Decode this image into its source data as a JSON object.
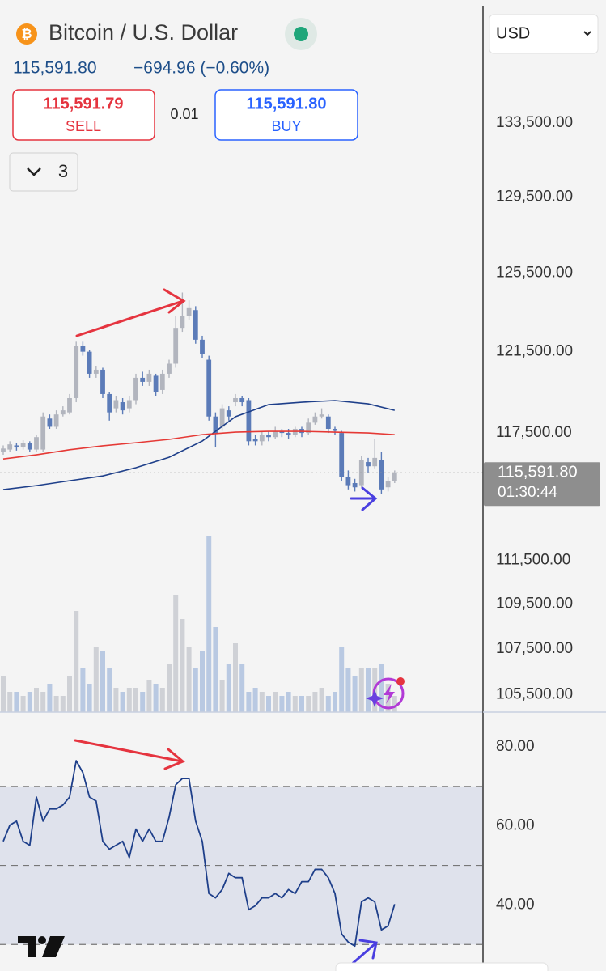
{
  "header": {
    "symbol": "Bitcoin / U.S. Dollar",
    "price": "115,591.80",
    "change": "−694.96 (−0.60%)",
    "sell_price": "115,591.79",
    "sell_label": "SELL",
    "spread": "0.01",
    "buy_price": "115,591.80",
    "buy_label": "BUY",
    "indicator_count": "3",
    "currency": "USD"
  },
  "chart_data": [
    {
      "type": "candlestick",
      "log": true,
      "grid": false,
      "up_color": "#b2b5be",
      "down_color": "#5b7bb8",
      "ylim": [
        104740,
        140440
      ],
      "yticks": [
        {
          "value": 133500,
          "label": "133,500.00"
        },
        {
          "value": 129500,
          "label": "129,500.00"
        },
        {
          "value": 125500,
          "label": "125,500.00"
        },
        {
          "value": 121500,
          "label": "121,500.00"
        },
        {
          "value": 117500,
          "label": "117,500.00"
        },
        {
          "value": 111500,
          "label": "111,500.00"
        },
        {
          "value": 109500,
          "label": "109,500.00"
        },
        {
          "value": 107500,
          "label": "107,500.00"
        },
        {
          "value": 105500,
          "label": "105,500.00"
        }
      ],
      "open": [
        116600,
        116700,
        116900,
        116800,
        117000,
        116700,
        116700,
        118200,
        117800,
        118400,
        118500,
        119200,
        121800,
        121500,
        120400,
        120600,
        119400,
        118700,
        119000,
        118700,
        119100,
        120200,
        120000,
        120300,
        119600,
        120400,
        120900,
        122700,
        123300,
        123600,
        122100,
        121100,
        118300,
        117800,
        118600,
        119000,
        119200,
        119100,
        117200,
        117100,
        117400,
        117300,
        117600,
        117500,
        117400,
        117700,
        117500,
        118000,
        118300,
        118300,
        117700,
        117500,
        115400,
        115100,
        115000,
        116100,
        115900,
        116200,
        114900,
        115200
      ],
      "high": [
        116900,
        117100,
        117000,
        117150,
        117100,
        117400,
        118500,
        118400,
        118600,
        118800,
        119400,
        122000,
        122000,
        121600,
        120800,
        120700,
        119500,
        119300,
        119200,
        119300,
        120400,
        120500,
        120600,
        120400,
        120600,
        121100,
        123300,
        124500,
        124100,
        123800,
        122300,
        121300,
        118500,
        118900,
        118800,
        119400,
        119300,
        119200,
        117400,
        117600,
        117600,
        117800,
        117700,
        117700,
        117800,
        117800,
        118200,
        118500,
        118700,
        118400,
        117800,
        117600,
        115700,
        115300,
        116400,
        116300,
        117200,
        116600,
        115400,
        115700
      ],
      "low": [
        116450,
        116600,
        116650,
        116700,
        116600,
        116600,
        116600,
        117700,
        117700,
        118300,
        118400,
        119000,
        121300,
        120200,
        120200,
        119200,
        118100,
        118500,
        118400,
        118500,
        118900,
        119800,
        119800,
        119300,
        119400,
        120200,
        120700,
        122500,
        123100,
        121900,
        121200,
        118100,
        116800,
        117600,
        118100,
        118800,
        118800,
        116900,
        116900,
        116900,
        117100,
        117200,
        117300,
        117200,
        117300,
        117300,
        117400,
        117900,
        118200,
        117500,
        117400,
        115200,
        114800,
        114700,
        114900,
        115600,
        115800,
        114600,
        114700,
        115100
      ],
      "close": [
        116750,
        116950,
        116800,
        117000,
        116700,
        117300,
        118300,
        117800,
        118400,
        118600,
        119200,
        121800,
        121500,
        120400,
        120600,
        119400,
        118500,
        119100,
        118600,
        119100,
        120200,
        120000,
        120400,
        119500,
        120400,
        120900,
        122700,
        123300,
        123700,
        122100,
        121400,
        118300,
        117500,
        118700,
        118300,
        119200,
        119000,
        117100,
        117100,
        117400,
        117300,
        117600,
        117500,
        117400,
        117700,
        117500,
        118000,
        118300,
        118400,
        117700,
        117600,
        115400,
        115000,
        114900,
        116200,
        115900,
        116300,
        114800,
        115200,
        115591.8
      ],
      "series": [
        {
          "color": "#1e3f8a",
          "x": [
            0,
            5,
            10,
            15,
            20,
            25,
            30,
            35,
            40,
            45,
            50,
            55,
            59
          ],
          "values": [
            114790,
            114980,
            115210,
            115440,
            115830,
            116330,
            117110,
            118290,
            118880,
            119000,
            119080,
            118920,
            118600
          ]
        },
        {
          "color": "#e53935",
          "x": [
            0,
            5,
            10,
            15,
            20,
            25,
            30,
            35,
            40,
            45,
            50,
            55,
            59
          ],
          "values": [
            116250,
            116450,
            116690,
            116880,
            117030,
            117190,
            117420,
            117540,
            117580,
            117580,
            117540,
            117500,
            117420
          ]
        }
      ],
      "last_price": {
        "value": 115591.8,
        "label": "115,591.80"
      },
      "countdown": "01:30:44"
    },
    {
      "type": "bar",
      "up_color": "#cfd1d6",
      "down_color": "#b9c9e2",
      "values": [
        45,
        25,
        25,
        20,
        25,
        30,
        25,
        35,
        20,
        20,
        45,
        125,
        55,
        35,
        80,
        75,
        55,
        30,
        25,
        30,
        30,
        25,
        40,
        35,
        30,
        60,
        145,
        115,
        80,
        55,
        75,
        218,
        105,
        40,
        60,
        85,
        60,
        25,
        30,
        25,
        20,
        25,
        20,
        25,
        20,
        20,
        20,
        25,
        30,
        20,
        25,
        80,
        55,
        45,
        55,
        55,
        55,
        60,
        35,
        20
      ]
    },
    {
      "type": "line",
      "color": "#1e3f8a",
      "band_color": "#dfe2ec",
      "ylim": [
        23.3,
        88.8
      ],
      "yticks": [
        {
          "value": 80,
          "label": "80.00"
        },
        {
          "value": 60,
          "label": "60.00"
        },
        {
          "value": 40,
          "label": "40.00"
        }
      ],
      "band": [
        30,
        70
      ],
      "levels": [
        70,
        50,
        30
      ],
      "values": [
        56.1,
        60.2,
        61.2,
        56.1,
        55.1,
        67.3,
        61.2,
        64.3,
        64.3,
        65.3,
        67.3,
        76.5,
        73.5,
        67.3,
        66.3,
        56.1,
        54.1,
        55.1,
        56.1,
        52.0,
        59.2,
        56.1,
        59.2,
        56.1,
        56.1,
        62.2,
        70.4,
        72.0,
        72.0,
        61.2,
        56.1,
        42.9,
        41.8,
        43.9,
        48.0,
        46.9,
        46.9,
        38.8,
        39.8,
        41.8,
        41.8,
        42.9,
        41.8,
        43.9,
        42.9,
        45.9,
        45.9,
        49.0,
        49.0,
        46.9,
        42.9,
        32.7,
        30.6,
        29.6,
        40.8,
        41.8,
        40.8,
        33.7,
        34.7,
        40.2
      ]
    }
  ]
}
